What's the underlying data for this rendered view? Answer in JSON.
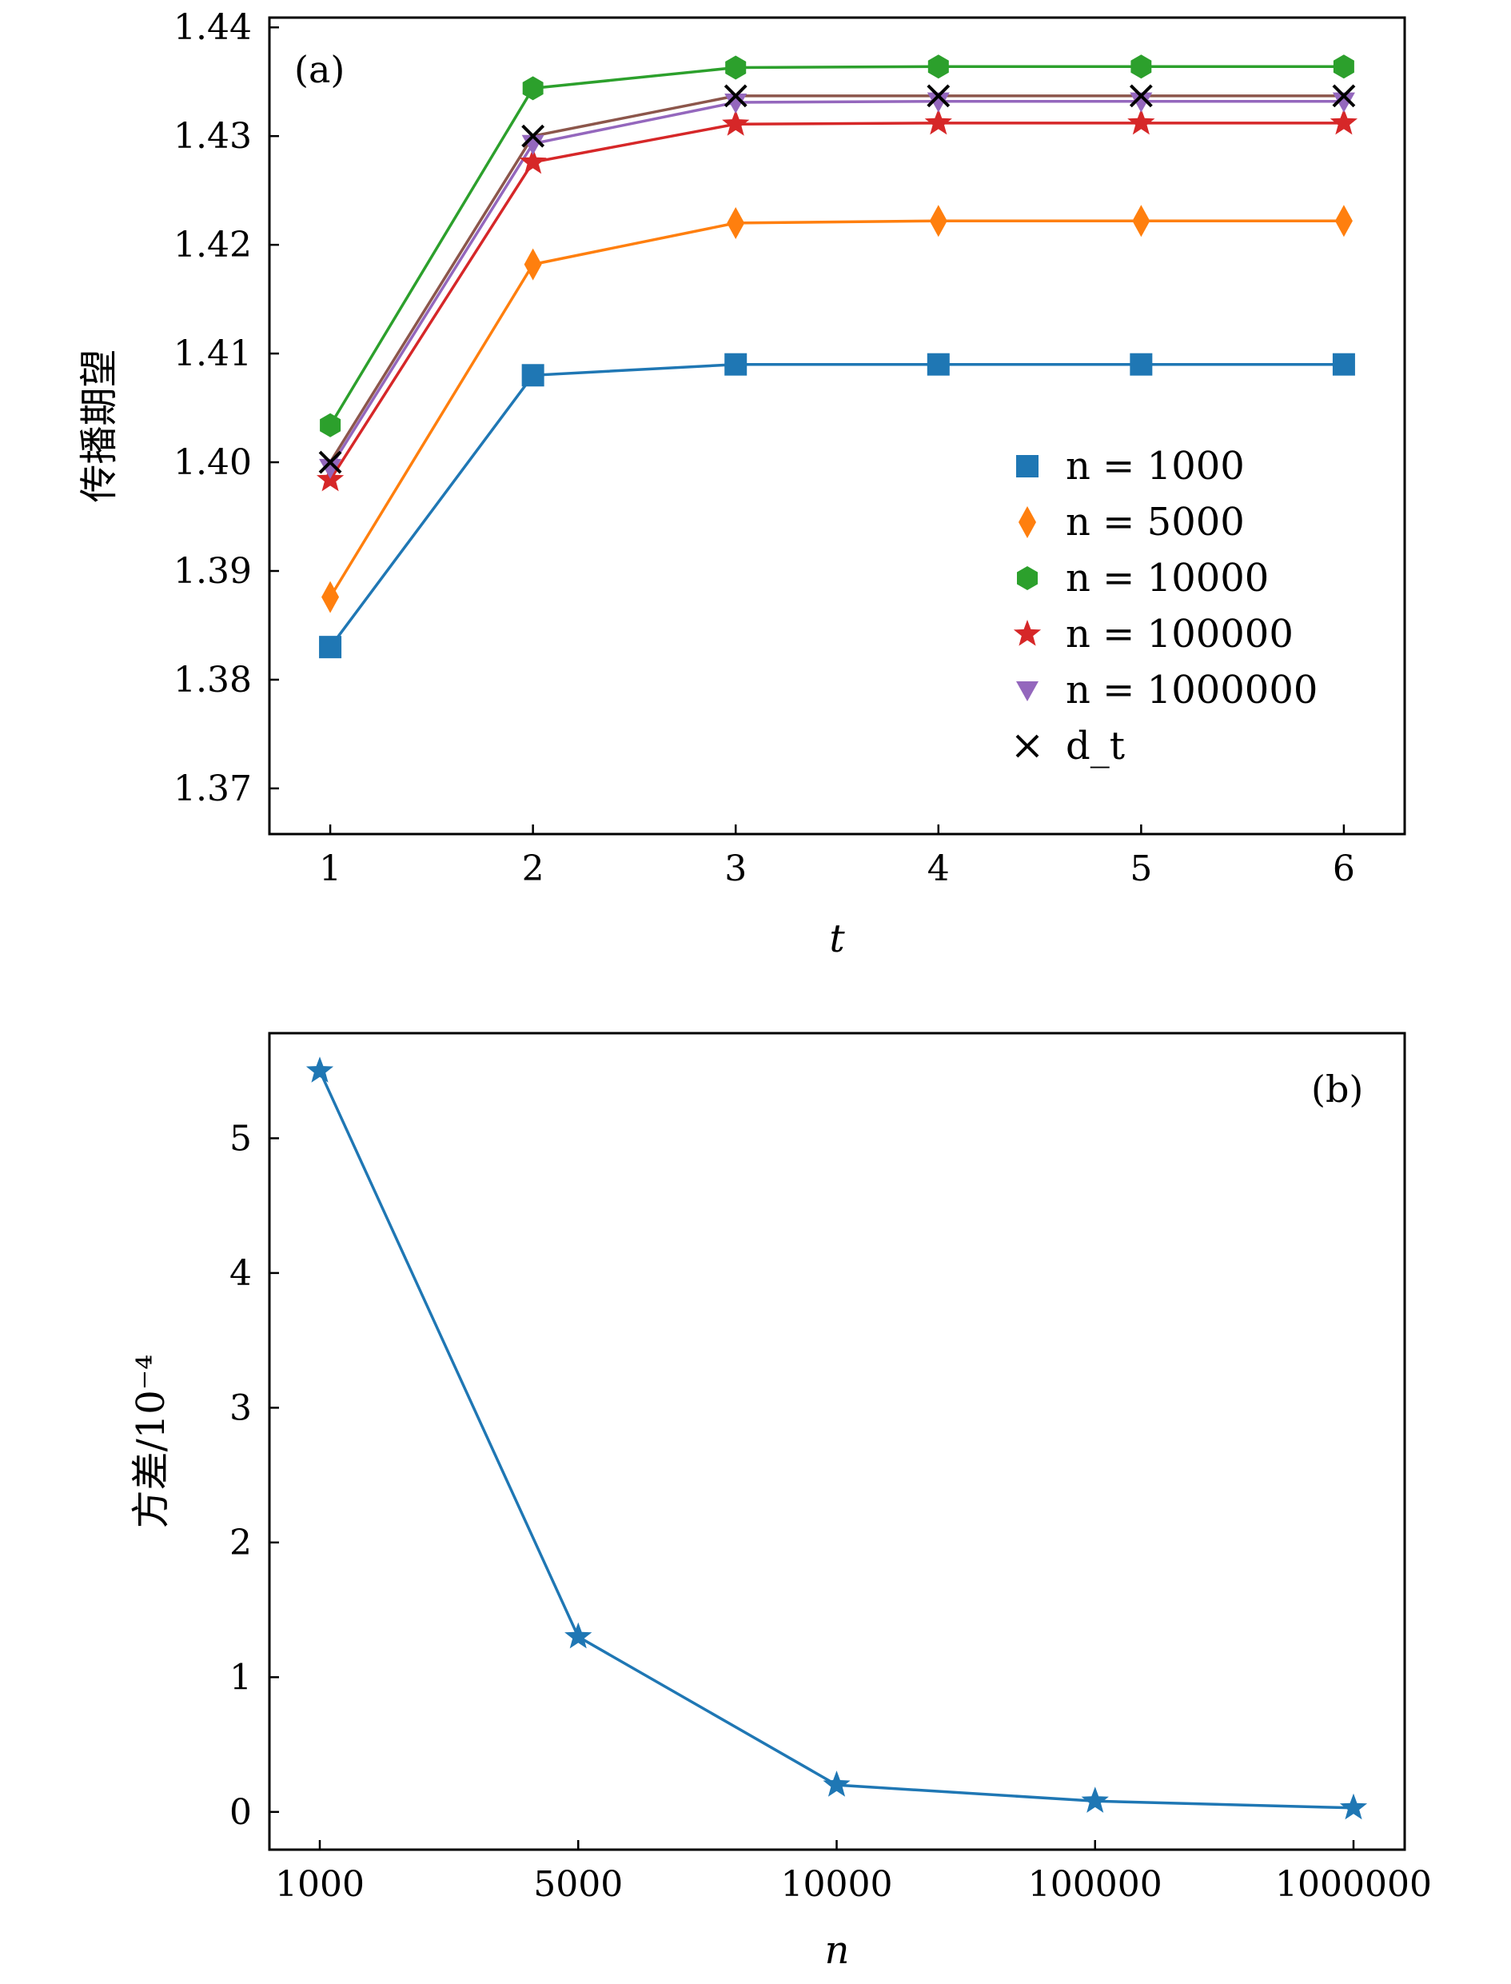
{
  "chart_data": [
    {
      "type": "line",
      "panel_label": "(a)",
      "xlabel": "t",
      "ylabel": "传播期望",
      "xlim": [
        0.7,
        6.3
      ],
      "ylim": [
        1.3658,
        1.4409
      ],
      "x": [
        1,
        2,
        3,
        4,
        5,
        6
      ],
      "x_tick_labels": [
        "1",
        "2",
        "3",
        "4",
        "5",
        "6"
      ],
      "y_ticks": [
        1.37,
        1.38,
        1.39,
        1.4,
        1.41,
        1.42,
        1.43,
        1.44
      ],
      "y_tick_labels": [
        "1.37",
        "1.38",
        "1.39",
        "1.40",
        "1.41",
        "1.42",
        "1.43",
        "1.44"
      ],
      "legend_position": "right",
      "series": [
        {
          "name": "n = 1000",
          "color": "#1f77b4",
          "marker": "square",
          "values": [
            1.383,
            1.408,
            1.409,
            1.409,
            1.409,
            1.409
          ]
        },
        {
          "name": "n = 5000",
          "color": "#ff7f0e",
          "marker": "diamond",
          "values": [
            1.3876,
            1.4182,
            1.422,
            1.4222,
            1.4222,
            1.4222
          ]
        },
        {
          "name": "n = 10000",
          "color": "#2ca02c",
          "marker": "hexagon",
          "values": [
            1.4034,
            1.4344,
            1.4363,
            1.4364,
            1.4364,
            1.4364
          ]
        },
        {
          "name": "n = 100000",
          "color": "#d62728",
          "marker": "star",
          "values": [
            1.3984,
            1.4276,
            1.4311,
            1.4312,
            1.4312,
            1.4312
          ]
        },
        {
          "name": "n = 1000000",
          "color": "#9467bd",
          "marker": "triangle-down",
          "values": [
            1.3995,
            1.4293,
            1.4331,
            1.4332,
            1.4332,
            1.4332
          ]
        },
        {
          "name": "d_t",
          "color": "#8c564b",
          "marker_color": "#000000",
          "marker": "x",
          "values": [
            1.4,
            1.43,
            1.4337,
            1.4337,
            1.4337,
            1.4337
          ]
        }
      ]
    },
    {
      "type": "line",
      "panel_label": "(b)",
      "xlabel": "n",
      "ylabel": "方差/10⁻⁴",
      "categories": [
        "1000",
        "5000",
        "10000",
        "100000",
        "1000000"
      ],
      "ylim": [
        -0.28,
        5.78
      ],
      "y_ticks": [
        0,
        1,
        2,
        3,
        4,
        5
      ],
      "y_tick_labels": [
        "0",
        "1",
        "2",
        "3",
        "4",
        "5"
      ],
      "series": [
        {
          "color": "#1f77b4",
          "marker": "star",
          "values": [
            5.5,
            1.3,
            0.2,
            0.08,
            0.03
          ]
        }
      ]
    }
  ]
}
